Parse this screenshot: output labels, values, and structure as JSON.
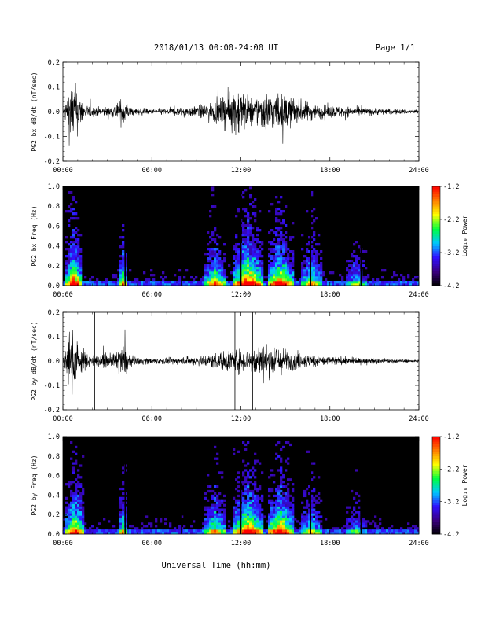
{
  "header": {
    "title": "2018/01/13  00:00-24:00 UT",
    "page": "Page 1/1"
  },
  "xlabel": "Universal Time (hh:mm)",
  "x_ticks": [
    "00:00",
    "06:00",
    "12:00",
    "18:00",
    "24:00"
  ],
  "colorbar": {
    "label": "Log₁₀ Power",
    "ticks": [
      "-1.2",
      "-2.2",
      "-3.2",
      "-4.2"
    ],
    "range": [
      -4.2,
      -1.2
    ],
    "colormap": [
      "#000000",
      "#3a0080",
      "#3010ff",
      "#00c8ff",
      "#00ff40",
      "#ffff00",
      "#ff8000",
      "#ff0000"
    ]
  },
  "chart_data": [
    {
      "type": "line",
      "panel": "bx_waveform",
      "ylabel": "PG2 bx dB/dt (nT/sec)",
      "xlim_hours": [
        0,
        24
      ],
      "ylim": [
        -0.2,
        0.2
      ],
      "y_ticks": [
        "0.2",
        "0.1",
        "0.0",
        "-0.1",
        "-0.2"
      ],
      "color": "#000000",
      "envelope": [
        {
          "t": 0.0,
          "amp": 0.03
        },
        {
          "t": 0.2,
          "amp": 0.08
        },
        {
          "t": 0.5,
          "amp": 0.22
        },
        {
          "t": 0.8,
          "amp": 0.2
        },
        {
          "t": 1.1,
          "amp": 0.12
        },
        {
          "t": 1.5,
          "amp": 0.05
        },
        {
          "t": 2.2,
          "amp": 0.03
        },
        {
          "t": 3.3,
          "amp": 0.04
        },
        {
          "t": 3.8,
          "amp": 0.07
        },
        {
          "t": 4.1,
          "amp": 0.12
        },
        {
          "t": 4.5,
          "amp": 0.03
        },
        {
          "t": 6.0,
          "amp": 0.02
        },
        {
          "t": 8.0,
          "amp": 0.03
        },
        {
          "t": 9.5,
          "amp": 0.05
        },
        {
          "t": 10.5,
          "amp": 0.08
        },
        {
          "t": 11.3,
          "amp": 0.14
        },
        {
          "t": 11.8,
          "amp": 0.18
        },
        {
          "t": 12.6,
          "amp": 0.1
        },
        {
          "t": 13.5,
          "amp": 0.14
        },
        {
          "t": 14.8,
          "amp": 0.12
        },
        {
          "t": 16.0,
          "amp": 0.08
        },
        {
          "t": 17.2,
          "amp": 0.05
        },
        {
          "t": 18.5,
          "amp": 0.04
        },
        {
          "t": 20.0,
          "amp": 0.03
        },
        {
          "t": 22.0,
          "amp": 0.02
        },
        {
          "t": 24.0,
          "amp": 0.015
        }
      ]
    },
    {
      "type": "heatmap",
      "panel": "bx_spectrogram",
      "ylabel": "PG2 bx Freq (Hz)",
      "xlim_hours": [
        0,
        24
      ],
      "ylim": [
        0.0,
        1.0
      ],
      "y_ticks": [
        "1.0",
        "0.8",
        "0.6",
        "0.4",
        "0.2",
        "0.0"
      ],
      "active_bands_hours": [
        {
          "start": 0.2,
          "end": 1.3,
          "level": 0.9
        },
        {
          "start": 3.8,
          "end": 4.3,
          "level": 0.7
        },
        {
          "start": 9.5,
          "end": 11.0,
          "level": 0.7
        },
        {
          "start": 11.5,
          "end": 13.5,
          "level": 0.95
        },
        {
          "start": 13.8,
          "end": 15.5,
          "level": 0.85
        },
        {
          "start": 16.0,
          "end": 17.5,
          "level": 0.6
        },
        {
          "start": 19.0,
          "end": 20.5,
          "level": 0.45
        }
      ],
      "dropouts_hours": [
        4.2,
        8.0,
        12.0,
        16.7,
        20.1
      ]
    },
    {
      "type": "line",
      "panel": "by_waveform",
      "ylabel": "PG2 by dB/dt (nT/sec)",
      "xlim_hours": [
        0,
        24
      ],
      "ylim": [
        -0.2,
        0.2
      ],
      "y_ticks": [
        "0.2",
        "0.1",
        "0.0",
        "-0.1",
        "-0.2"
      ],
      "color": "#000000",
      "envelope": [
        {
          "t": 0.0,
          "amp": 0.04
        },
        {
          "t": 0.3,
          "amp": 0.1
        },
        {
          "t": 0.5,
          "amp": 0.22
        },
        {
          "t": 0.9,
          "amp": 0.16
        },
        {
          "t": 1.2,
          "amp": 0.1
        },
        {
          "t": 1.6,
          "amp": 0.06
        },
        {
          "t": 2.3,
          "amp": 0.04
        },
        {
          "t": 3.4,
          "amp": 0.05
        },
        {
          "t": 3.9,
          "amp": 0.1
        },
        {
          "t": 4.2,
          "amp": 0.12
        },
        {
          "t": 4.6,
          "amp": 0.03
        },
        {
          "t": 6.0,
          "amp": 0.02
        },
        {
          "t": 8.0,
          "amp": 0.025
        },
        {
          "t": 9.5,
          "amp": 0.04
        },
        {
          "t": 10.5,
          "amp": 0.06
        },
        {
          "t": 11.5,
          "amp": 0.09
        },
        {
          "t": 12.3,
          "amp": 0.07
        },
        {
          "t": 13.4,
          "amp": 0.12
        },
        {
          "t": 14.5,
          "amp": 0.1
        },
        {
          "t": 15.8,
          "amp": 0.06
        },
        {
          "t": 17.0,
          "amp": 0.04
        },
        {
          "t": 18.5,
          "amp": 0.03
        },
        {
          "t": 20.0,
          "amp": 0.02
        },
        {
          "t": 22.0,
          "amp": 0.015
        },
        {
          "t": 24.0,
          "amp": 0.01
        }
      ],
      "spike_lines_hours": [
        2.15,
        11.6,
        12.8
      ]
    },
    {
      "type": "heatmap",
      "panel": "by_spectrogram",
      "ylabel": "PG2 by Freq (Hz)",
      "xlim_hours": [
        0,
        24
      ],
      "ylim": [
        0.0,
        1.0
      ],
      "y_ticks": [
        "1.0",
        "0.8",
        "0.6",
        "0.4",
        "0.2",
        "0.0"
      ],
      "active_bands_hours": [
        {
          "start": 0.2,
          "end": 1.4,
          "level": 0.85
        },
        {
          "start": 3.8,
          "end": 4.3,
          "level": 0.65
        },
        {
          "start": 9.5,
          "end": 11.0,
          "level": 0.65
        },
        {
          "start": 11.5,
          "end": 13.5,
          "level": 0.9
        },
        {
          "start": 13.8,
          "end": 15.5,
          "level": 0.9
        },
        {
          "start": 16.0,
          "end": 17.5,
          "level": 0.55
        },
        {
          "start": 19.0,
          "end": 20.5,
          "level": 0.4
        }
      ],
      "dropouts_hours": [
        4.2,
        8.0,
        12.0,
        16.7,
        20.1
      ]
    }
  ]
}
